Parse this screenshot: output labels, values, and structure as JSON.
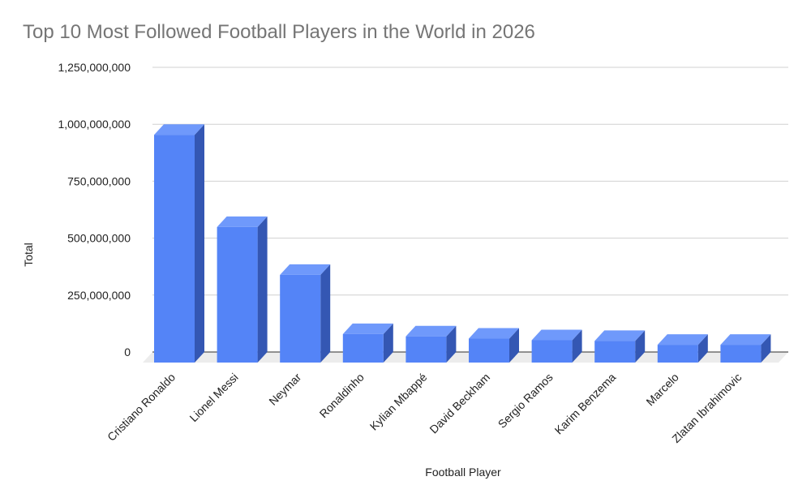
{
  "chart_data": {
    "type": "bar",
    "title": "Top 10 Most Followed Football Players in the World in 2026",
    "xlabel": "Football Player",
    "ylabel": "Total",
    "categories": [
      "Cristiano Ronaldo",
      "Lionel Messi",
      "Neymar",
      "Ronaldinho",
      "Kylian Mbappé",
      "David Beckham",
      "Sergio Ramos",
      "Karim Benzema",
      "Marcelo",
      "Zlatan Ibrahimovic"
    ],
    "values": [
      1000000000,
      595000000,
      385000000,
      125000000,
      115000000,
      105000000,
      98000000,
      95000000,
      78000000,
      78000000
    ],
    "ylim": [
      0,
      1250000000
    ],
    "yticks": [
      "0",
      "250,000,000",
      "500,000,000",
      "750,000,000",
      "1,000,000,000",
      "1,250,000,000"
    ],
    "grid": true,
    "legend": "none",
    "style": "3d",
    "colors": {
      "bar_front": "#5484f7",
      "bar_top": "#6f99fb",
      "bar_side": "#3457b3",
      "floor": "#ececec",
      "grid": "#d0d0d0",
      "title": "#757575"
    }
  }
}
